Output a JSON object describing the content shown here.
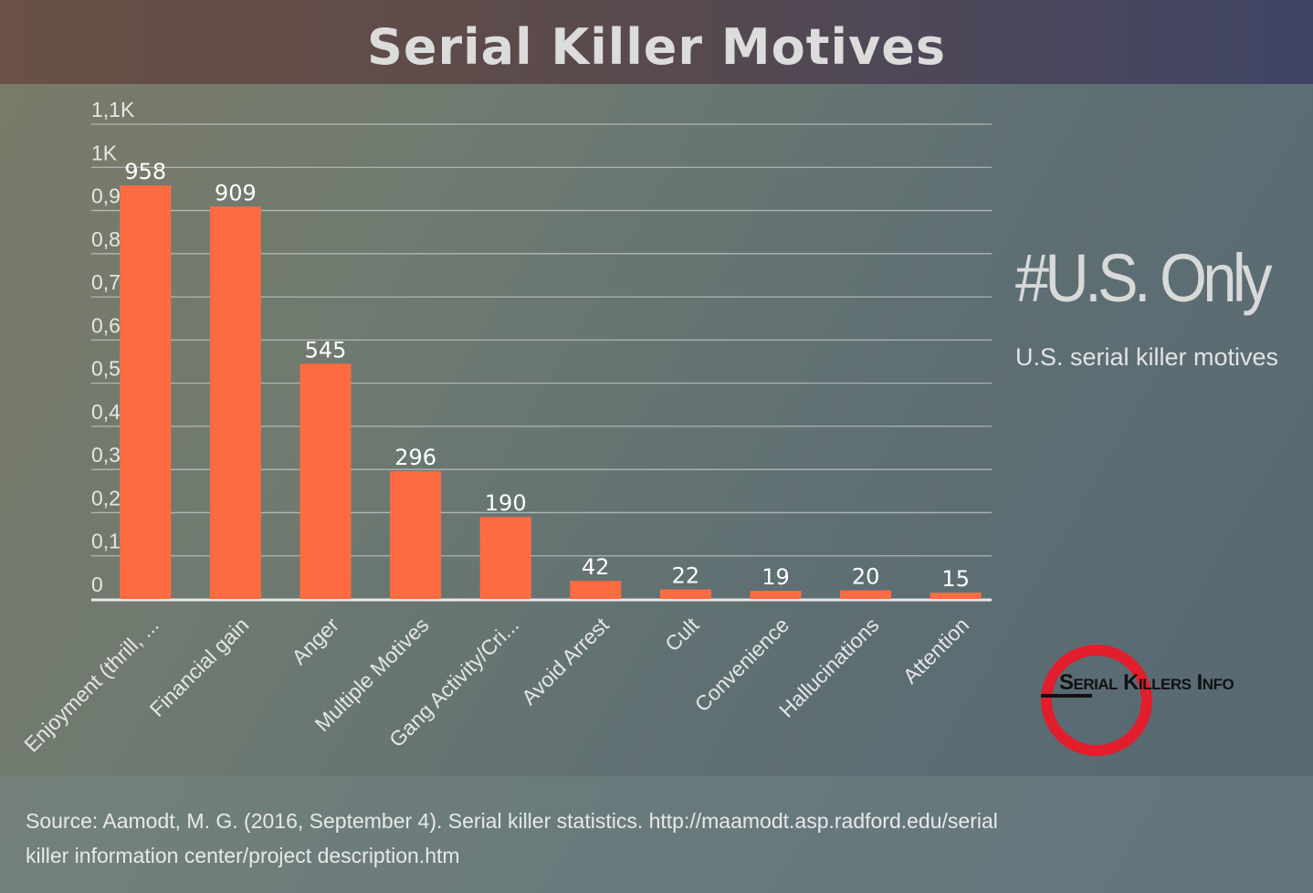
{
  "page": {
    "title": "Serial Killer Motives",
    "tag": "#U.S. Only",
    "subtitle": "U.S. serial killer motives",
    "logo_text": "Serial Killers Info",
    "source_line1": "Source: Aamodt, M. G. (2016, September 4). Serial killer statistics. http://maamodt.asp.radford.edu/serial",
    "source_line2": "killer information center/project description.htm"
  },
  "colors": {
    "bar": "#ff6b40",
    "grid": "#c8cccc",
    "label": "#e6e6e6",
    "logo_ring": "#e21d2c"
  },
  "chart_data": {
    "type": "bar",
    "categories": [
      "Enjoyment (thrill, ...",
      "Financial gain",
      "Anger",
      "Multiple Motives",
      "Gang Activity/Cri...",
      "Avoid Arrest",
      "Cult",
      "Convenience",
      "Hallucinations",
      "Attention"
    ],
    "values": [
      958,
      909,
      545,
      296,
      190,
      42,
      22,
      19,
      20,
      15
    ],
    "ylim": [
      0,
      1100
    ],
    "yticks": [
      0,
      100,
      200,
      300,
      400,
      500,
      600,
      700,
      800,
      900,
      1000,
      1100
    ],
    "ytick_labels": [
      "0",
      "0,1K",
      "0,2K",
      "0,3K",
      "0,4K",
      "0,5K",
      "0,6K",
      "0,7K",
      "0,8K",
      "0,9K",
      "1K",
      "1,1K"
    ],
    "xlabel": "",
    "ylabel": "",
    "grid": true,
    "data_labels": true
  }
}
